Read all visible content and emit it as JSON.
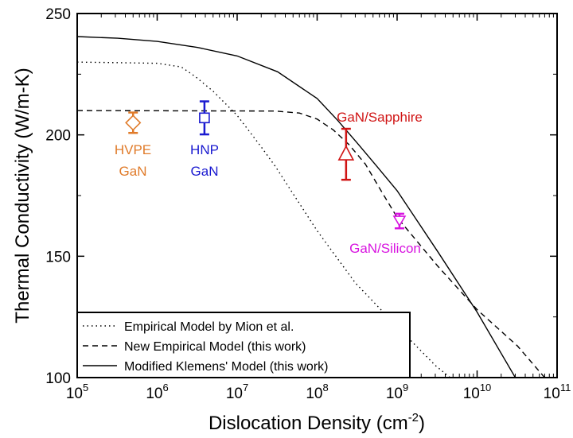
{
  "chart_data": {
    "type": "scatter",
    "xlabel": "Dislocation Density (cm",
    "xlabel_sup": "-2",
    "xlabel_end": ")",
    "ylabel": "Thermal Conductivity (W/m-K)",
    "xscale": "log",
    "xlim": [
      100000,
      100000000000
    ],
    "ylim": [
      100,
      250
    ],
    "grid": false,
    "legend_placement": "bottom-left",
    "x_ticks": [
      {
        "base": "10",
        "exp": "5"
      },
      {
        "base": "10",
        "exp": "6"
      },
      {
        "base": "10",
        "exp": "7"
      },
      {
        "base": "10",
        "exp": "8"
      },
      {
        "base": "10",
        "exp": "9"
      },
      {
        "base": "10",
        "exp": "10"
      },
      {
        "base": "10",
        "exp": "11"
      }
    ],
    "y_ticks": [
      "100",
      "150",
      "200",
      "250"
    ],
    "lines": [
      {
        "name": "Empirical Model by Mion et al.",
        "style": "dotted",
        "x": [
          100000.0,
          1000000.0,
          2000000.0,
          3000000.0,
          5000000.0,
          10000000.0,
          20000000.0,
          30000000.0,
          100000000.0,
          300000000.0,
          1000000000.0,
          3000000000.0,
          4600000000.0
        ],
        "y": [
          230,
          229.5,
          228,
          224,
          218,
          208,
          195,
          187,
          160.5,
          139,
          121,
          105,
          100
        ]
      },
      {
        "name": "New Empirical Model (this work)",
        "style": "dashed",
        "x": [
          100000.0,
          30000000.0,
          60000000.0,
          100000000.0,
          160000000.0,
          250000000.0,
          400000000.0,
          630000000.0,
          1000000000.0,
          3200000000.0,
          10000000000.0,
          32000000000.0,
          70000000000.0
        ],
        "y": [
          210,
          209.8,
          209,
          206.5,
          202,
          196,
          188,
          177,
          166,
          146,
          128,
          113,
          100
        ]
      },
      {
        "name": "Modified Klemens' Model (this work)",
        "style": "solid",
        "x": [
          100000.0,
          320000.0,
          1000000.0,
          3200000.0,
          10000000.0,
          32000000.0,
          100000000.0,
          180000000.0,
          320000000.0,
          560000000.0,
          1000000000.0,
          3200000000.0,
          10000000000.0,
          30000000000.0
        ],
        "y": [
          240.5,
          239.8,
          238.5,
          236,
          232.5,
          226,
          215,
          206,
          196.5,
          187,
          177,
          152,
          127,
          100
        ]
      }
    ],
    "points": [
      {
        "label": [
          "HVPE",
          "GaN"
        ],
        "x": 500000.0,
        "y": 205,
        "err": 4.2,
        "marker": "diamond",
        "color": "#e07b2a"
      },
      {
        "label": [
          "HNP",
          "GaN"
        ],
        "x": 3900000.0,
        "y": 207,
        "err": 6.8,
        "marker": "square",
        "color": "#1a1ad0"
      },
      {
        "label": [
          "GaN/Sapphire"
        ],
        "x": 230000000.0,
        "y": 192,
        "err": 10.5,
        "marker": "triangle-up",
        "color": "#d01414"
      },
      {
        "label": [
          "GaN/Silicon"
        ],
        "x": 1070000000.0,
        "y": 164.5,
        "err": 3,
        "marker": "triangle-down",
        "color": "#d814e0"
      }
    ]
  }
}
